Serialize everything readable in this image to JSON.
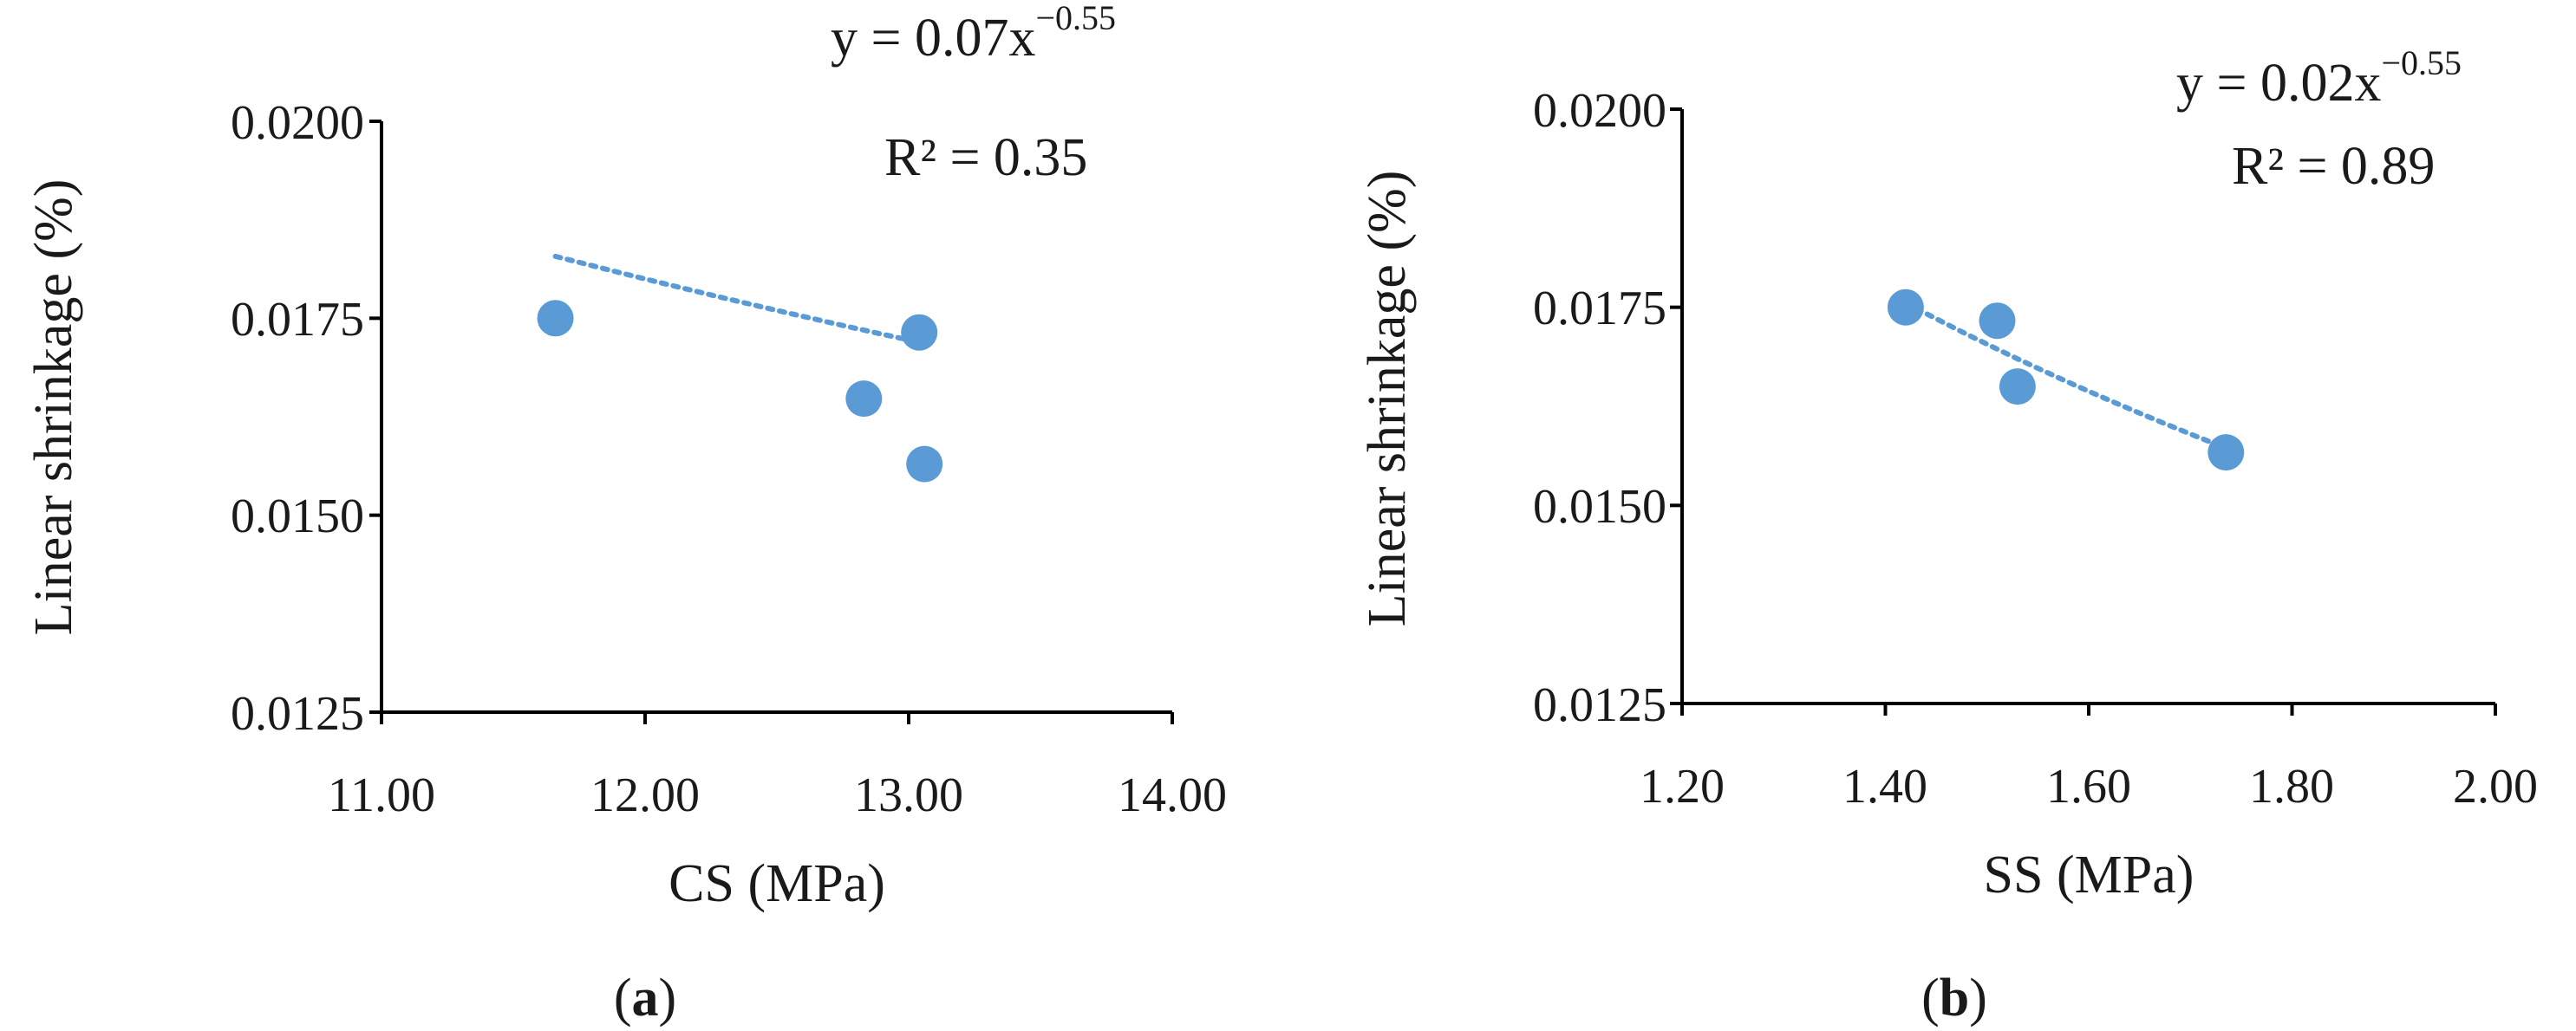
{
  "chart_data": [
    {
      "type": "scatter",
      "panel_label": {
        "open": "(",
        "letter": "a",
        "close": ")"
      },
      "xlabel": "CS (MPa)",
      "ylabel": "Linear shrinkage (%)",
      "xlim": [
        11.0,
        14.0
      ],
      "ylim": [
        0.0125,
        0.02
      ],
      "xticks": [
        "11.00",
        "12.00",
        "13.00",
        "14.00"
      ],
      "yticks": [
        "0.0125",
        "0.0150",
        "0.0175",
        "0.0200"
      ],
      "points": [
        {
          "x": 11.66,
          "y": 0.0175
        },
        {
          "x": 12.83,
          "y": 0.01648
        },
        {
          "x": 13.04,
          "y": 0.01732
        },
        {
          "x": 13.06,
          "y": 0.01565
        }
      ],
      "trendline": {
        "style": "dotted",
        "x_range": [
          11.66,
          13.06
        ],
        "equation": {
          "base": "y = 0.07x",
          "exponent": "−0.55"
        },
        "r2": "R² = 0.35",
        "a": 0.0706,
        "b": -0.55
      },
      "grid": false,
      "marker_color": "#5b9bd5",
      "trend_color": "#5b9bd5"
    },
    {
      "type": "scatter",
      "panel_label": {
        "open": "(",
        "letter": "b",
        "close": ")"
      },
      "xlabel": "SS (MPa)",
      "ylabel": "Linear shrinkage (%)",
      "xlim": [
        1.2,
        2.0
      ],
      "ylim": [
        0.0125,
        0.02
      ],
      "xticks": [
        "1.20",
        "1.40",
        "1.60",
        "1.80",
        "2.00"
      ],
      "yticks": [
        "0.0125",
        "0.0150",
        "0.0175",
        "0.0200"
      ],
      "points": [
        {
          "x": 1.42,
          "y": 0.0175
        },
        {
          "x": 1.51,
          "y": 0.01733
        },
        {
          "x": 1.53,
          "y": 0.0165
        },
        {
          "x": 1.735,
          "y": 0.01567
        }
      ],
      "trendline": {
        "style": "dotted",
        "x_range": [
          1.42,
          1.735
        ],
        "equation": {
          "base": "y = 0.02x",
          "exponent": "−0.55"
        },
        "r2": "R² = 0.89",
        "a": 0.02129,
        "b": -0.55
      },
      "grid": false,
      "marker_color": "#5b9bd5",
      "trend_color": "#5b9bd5"
    }
  ]
}
